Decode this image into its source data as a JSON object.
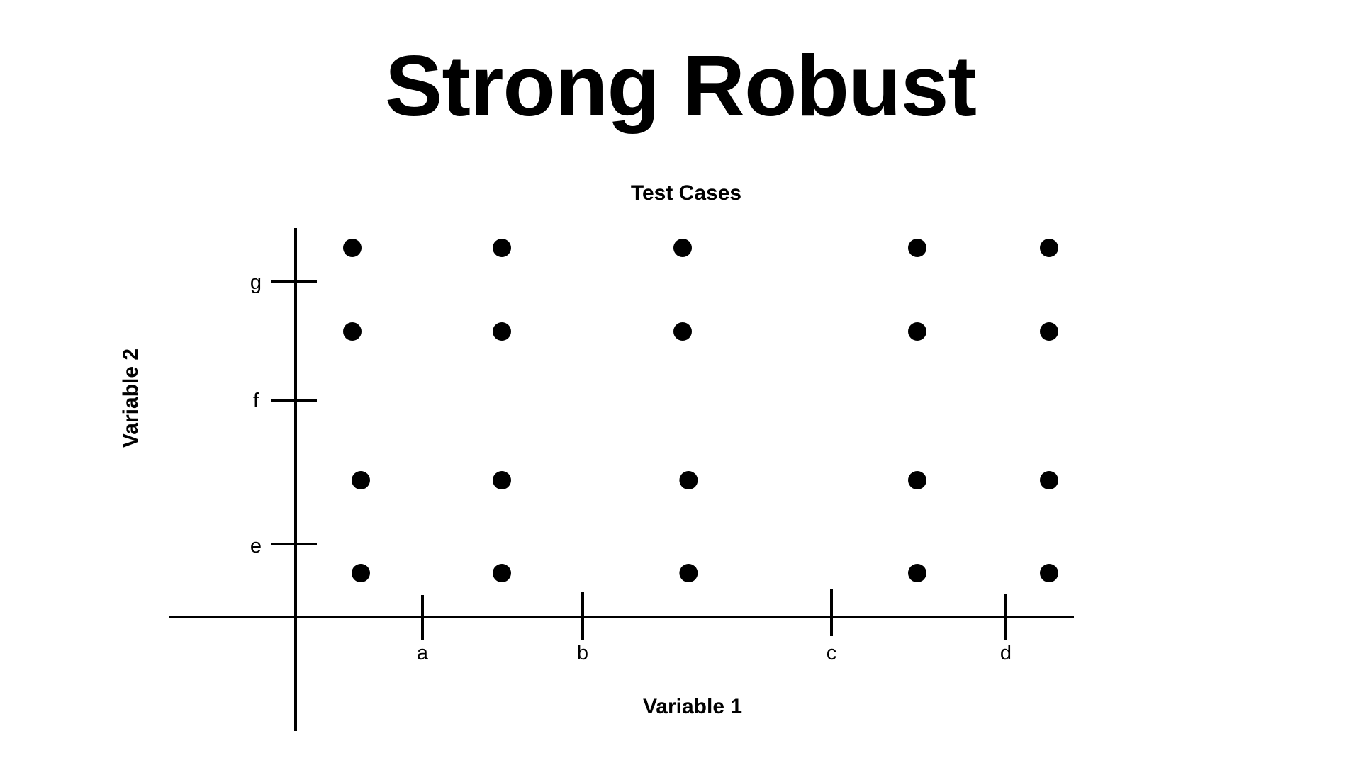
{
  "slide": {
    "title": "Strong Robust"
  },
  "diagram": {
    "subtitle": "Test Cases",
    "x_axis_label": "Variable 1",
    "y_axis_label": "Variable 2",
    "x_ticks": [
      "a",
      "b",
      "c",
      "d"
    ],
    "y_ticks": [
      "e",
      "f",
      "g"
    ],
    "point_color": "#000000",
    "points": [
      {
        "x": "a-",
        "y": "g+"
      },
      {
        "x": "a+",
        "y": "g+"
      },
      {
        "x": "nominal",
        "y": "g+"
      },
      {
        "x": "d-",
        "y": "g+"
      },
      {
        "x": "d+",
        "y": "g+"
      },
      {
        "x": "a-",
        "y": "g-"
      },
      {
        "x": "a+",
        "y": "g-"
      },
      {
        "x": "nominal",
        "y": "g-"
      },
      {
        "x": "d-",
        "y": "g-"
      },
      {
        "x": "d+",
        "y": "g-"
      },
      {
        "x": "a-",
        "y": "e+"
      },
      {
        "x": "a+",
        "y": "e+"
      },
      {
        "x": "nominal",
        "y": "e+"
      },
      {
        "x": "d-",
        "y": "e+"
      },
      {
        "x": "d+",
        "y": "e+"
      },
      {
        "x": "a-",
        "y": "e-"
      },
      {
        "x": "a+",
        "y": "e-"
      },
      {
        "x": "nominal",
        "y": "e-"
      },
      {
        "x": "d-",
        "y": "e-"
      },
      {
        "x": "d+",
        "y": "e-"
      }
    ]
  }
}
